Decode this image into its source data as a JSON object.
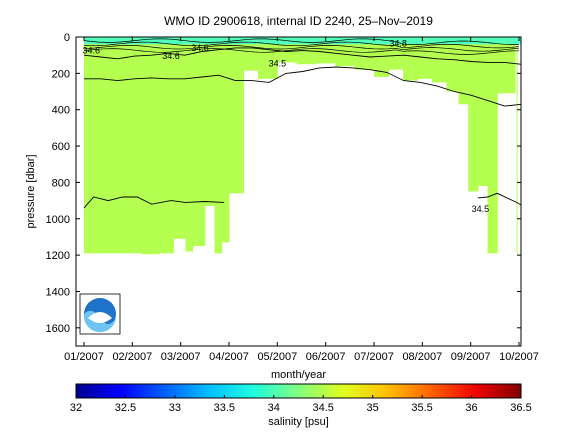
{
  "chart_data": {
    "type": "heatmap",
    "title": "WMO ID 2900618, internal ID 2240, 25–Nov–2019",
    "xlabel": "month/year",
    "ylabel": "pressure [dbar]",
    "x_tick_labels": [
      "01/2007",
      "02/2007",
      "03/2007",
      "04/2007",
      "05/2007",
      "06/2007",
      "07/2007",
      "08/2007",
      "09/2007",
      "10/2007"
    ],
    "y_tick_labels": [
      "0",
      "200",
      "400",
      "600",
      "800",
      "1000",
      "1200",
      "1400",
      "1600"
    ],
    "y_ticks": [
      0,
      200,
      400,
      600,
      800,
      1000,
      1200,
      1400,
      1600
    ],
    "ylim": [
      1700,
      0
    ],
    "xlim_months": [
      0,
      9
    ],
    "colorbar": {
      "label": "salinity [psu]",
      "ticks": [
        32,
        32.5,
        33,
        33.5,
        34,
        34.5,
        35,
        35.5,
        36,
        36.5
      ],
      "tick_labels": [
        "32",
        "32.5",
        "33",
        "33.5",
        "34",
        "34.5",
        "35",
        "35.5",
        "36",
        "36.5"
      ],
      "range": [
        32,
        36.5
      ],
      "colors": [
        "#00008f",
        "#0000ff",
        "#0060ff",
        "#00bfff",
        "#20ffdf",
        "#80ff80",
        "#dfff20",
        "#ffbf00",
        "#ff6000",
        "#ef0000",
        "#800000"
      ]
    },
    "field_color": "#b4ff50",
    "surface_color": "#40ffd0",
    "coverage": {
      "profile_months": [
        0.0,
        0.4,
        0.85,
        1.2,
        1.55,
        1.85,
        2.1,
        2.25,
        2.5,
        2.7,
        2.85,
        3.0,
        3.3,
        3.6,
        4.0,
        4.4,
        4.8,
        5.2,
        5.6,
        6.0,
        6.3,
        6.6,
        6.9,
        7.2,
        7.5,
        7.75,
        7.95,
        8.15,
        8.35,
        8.55,
        8.75,
        8.95
      ],
      "max_depth_dbar": [
        1190,
        1190,
        1190,
        1195,
        1190,
        1110,
        1180,
        1150,
        930,
        1190,
        1130,
        860,
        185,
        230,
        140,
        150,
        145,
        160,
        180,
        220,
        180,
        240,
        230,
        250,
        300,
        370,
        850,
        820,
        1190,
        310,
        310,
        1190
      ]
    },
    "contours": [
      {
        "label": "34.6",
        "depth_dbar": [
          100,
          110,
          120,
          105,
          100,
          90,
          100,
          80,
          70,
          60,
          60,
          70,
          80,
          75,
          80,
          90,
          100,
          110,
          105,
          100,
          110,
          120,
          125,
          135,
          140,
          140,
          150
        ]
      },
      {
        "label": "34.5",
        "depth_dbar": [
          230,
          230,
          240,
          230,
          225,
          230,
          230,
          220,
          210,
          240,
          240,
          250,
          200,
          190,
          170,
          165,
          170,
          180,
          195,
          240,
          250,
          270,
          300,
          320,
          350,
          380,
          370
        ]
      },
      {
        "label": "34.5",
        "depth_dbar": [
          940,
          880,
          900,
          880,
          880,
          920,
          900,
          910,
          905,
          910
        ]
      }
    ],
    "contour_labels": [
      "34.6",
      "34.6",
      "34.5",
      "34.5",
      "34.8",
      "34.6"
    ],
    "grid": false,
    "logo": "noaa-logo"
  }
}
